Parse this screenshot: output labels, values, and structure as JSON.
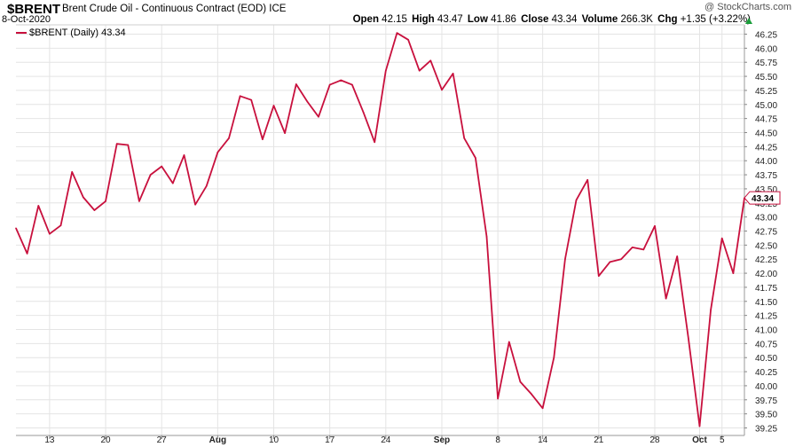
{
  "header": {
    "symbol": "$BRENT",
    "description": "Brent Crude Oil - Continuous Contract (EOD)",
    "exchange": "ICE",
    "date": "8-Oct-2020",
    "watermark": "@ StockCharts.com",
    "quote": {
      "open_label": "Open",
      "open": "42.15",
      "high_label": "High",
      "high": "43.47",
      "low_label": "Low",
      "low": "41.86",
      "close_label": "Close",
      "close": "43.34",
      "volume_label": "Volume",
      "volume": "266.3K",
      "chg_label": "Chg",
      "chg": "+1.35 (+3.22%)"
    }
  },
  "legend": {
    "label": "$BRENT (Daily) 43.34"
  },
  "colors": {
    "line": "#c8103d",
    "grid": "#e4e4e4",
    "up": "#1a9e3a"
  },
  "chart_data": {
    "type": "line",
    "title": "$BRENT Brent Crude Oil - Continuous Contract (EOD) ICE",
    "xlabel": "",
    "ylabel": "",
    "ylim": [
      39.25,
      46.25
    ],
    "y_ticks": [
      "39.25",
      "39.50",
      "39.75",
      "40.00",
      "40.25",
      "40.50",
      "40.75",
      "41.00",
      "41.25",
      "41.50",
      "41.75",
      "42.00",
      "42.25",
      "42.50",
      "42.75",
      "43.00",
      "43.25",
      "43.50",
      "43.75",
      "44.00",
      "44.25",
      "44.50",
      "44.75",
      "45.00",
      "45.25",
      "45.50",
      "45.75",
      "46.00",
      "46.25"
    ],
    "x_tick_labels": [
      "13",
      "20",
      "27",
      "Aug",
      "10",
      "17",
      "24",
      "Sep",
      "8",
      "14",
      "21",
      "28",
      "Oct",
      "5"
    ],
    "x_tick_bold": [
      "Aug",
      "Sep",
      "Oct"
    ],
    "last_value_label": "43.34",
    "legend_position": "top-left",
    "grid": true,
    "series": [
      {
        "name": "$BRENT (Daily)",
        "values": [
          42.8,
          42.35,
          43.2,
          42.7,
          42.85,
          43.8,
          43.35,
          43.12,
          43.28,
          44.3,
          44.28,
          43.28,
          43.75,
          43.9,
          43.6,
          44.1,
          43.22,
          43.55,
          44.15,
          44.4,
          45.15,
          45.08,
          44.38,
          44.98,
          44.49,
          45.36,
          45.05,
          44.78,
          45.35,
          45.43,
          45.35,
          44.86,
          44.33,
          45.6,
          46.27,
          46.15,
          45.6,
          45.78,
          45.26,
          45.55,
          44.4,
          44.05,
          42.65,
          39.77,
          40.78,
          40.07,
          39.85,
          39.6,
          40.5,
          42.25,
          43.3,
          43.66,
          41.95,
          42.2,
          42.25,
          42.46,
          42.42,
          42.84,
          41.55,
          42.3,
          40.85,
          39.28,
          41.35,
          42.62,
          42.0,
          43.34
        ]
      }
    ]
  }
}
